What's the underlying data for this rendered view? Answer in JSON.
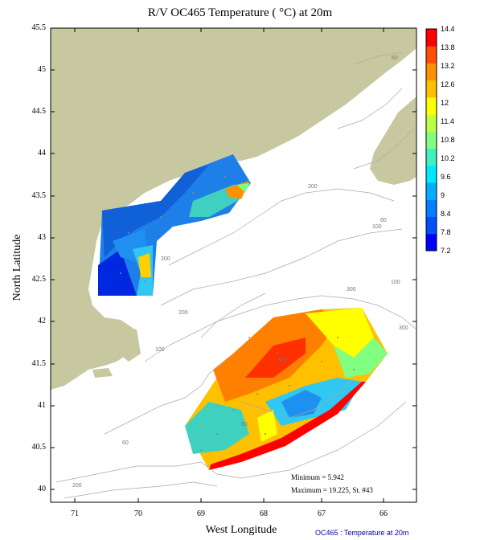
{
  "title": "R/V OC465 Temperature ( °C) at 20m",
  "axes": {
    "xlabel": "West Longitude",
    "ylabel": "North Latitude",
    "x_ticks": [
      "71",
      "70",
      "69",
      "68",
      "67",
      "66"
    ],
    "y_ticks": [
      "45.5",
      "45",
      "44.5",
      "44",
      "43.5",
      "43",
      "42.5",
      "42",
      "41.5",
      "41",
      "40.5",
      "40"
    ]
  },
  "colorbar": {
    "labels": [
      "14.4",
      "13.8",
      "13.2",
      "12.6",
      "12",
      "11.4",
      "10.8",
      "10.2",
      "9.6",
      "9",
      "8.4",
      "7.8",
      "7.2"
    ],
    "colors": [
      "#0000ff",
      "#0050ff",
      "#0080ff",
      "#00b0ff",
      "#00e8ff",
      "#40f0c0",
      "#80ff80",
      "#c0ff40",
      "#ffff00",
      "#ffc000",
      "#ff9000",
      "#ff5000",
      "#ff0000"
    ]
  },
  "stats": {
    "minimum": "Minimum = 5.942",
    "maximum": "Maximum = 19.225, St. #43"
  },
  "isobath_labels": [
    "60",
    "100",
    "200",
    "60",
    "100",
    "300",
    "200",
    "200",
    "300",
    "100",
    "60",
    "60",
    "200",
    "300"
  ],
  "footer": "OC465 : Temperature at 20m",
  "colors": {
    "land": "#c8c8a0",
    "contour": "#a0a0a0",
    "footer": "#0000aa"
  }
}
